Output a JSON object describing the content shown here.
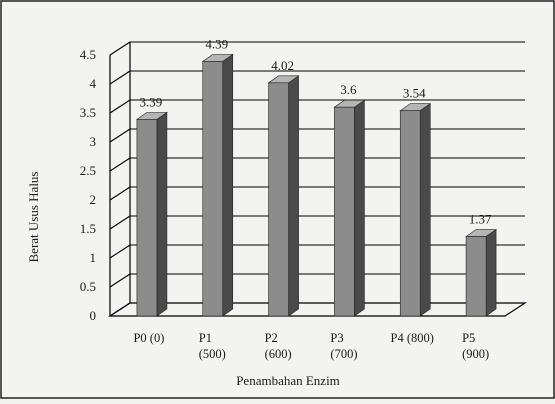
{
  "chart_data": {
    "type": "bar",
    "title": "",
    "xlabel": "Penambahan Enzim",
    "ylabel": "Berat Usus Halus",
    "ylim": [
      0,
      4.5
    ],
    "yticks": [
      "0",
      "0.5",
      "1",
      "1.5",
      "2",
      "2.5",
      "3",
      "3.5",
      "4",
      "4.5"
    ],
    "categories": [
      [
        "P0 (0)"
      ],
      [
        "P1",
        "(500)"
      ],
      [
        "P2",
        "(600)"
      ],
      [
        "P3",
        "(700)"
      ],
      [
        "P4 (800)"
      ],
      [
        "P5",
        "(900)"
      ]
    ],
    "values": [
      3.39,
      4.39,
      4.02,
      3.6,
      3.54,
      1.37
    ],
    "value_labels": [
      "3.39",
      "4.39",
      "4.02",
      "3.6",
      "3.54",
      "1.37"
    ],
    "grid": true,
    "style": "3d-bar",
    "colors": {
      "bar_front": "#8c8c8c",
      "bar_side": "#4a4a4a",
      "bar_top": "#b5b5b5",
      "gridline": "#000000",
      "background": "#f3f3f1"
    }
  }
}
